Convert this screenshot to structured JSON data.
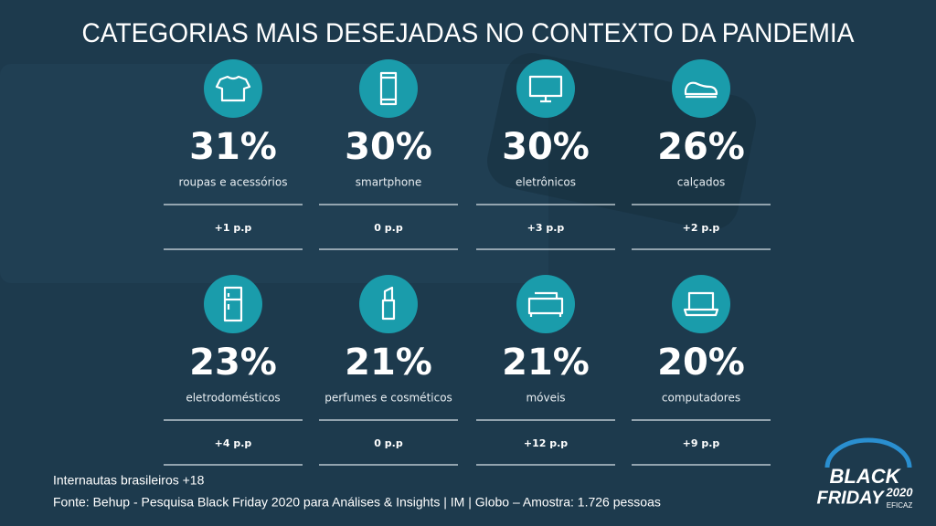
{
  "title": "CATEGORIAS MAIS DESEJADAS NO CONTEXTO DA PANDEMIA",
  "cards": [
    {
      "percent": "31%",
      "label": "roupas e acessórios",
      "change": "+1 p.p"
    },
    {
      "percent": "30%",
      "label": "smartphone",
      "change": "0 p.p"
    },
    {
      "percent": "30%",
      "label": "eletrônicos",
      "change": "+3 p.p"
    },
    {
      "percent": "26%",
      "label": "calçados",
      "change": "+2 p.p"
    },
    {
      "percent": "23%",
      "label": "eletrodomésticos",
      "change": "+4 p.p"
    },
    {
      "percent": "21%",
      "label": "perfumes e cosméticos",
      "change": "0 p.p"
    },
    {
      "percent": "21%",
      "label": "móveis",
      "change": "+12 p.p"
    },
    {
      "percent": "20%",
      "label": "computadores",
      "change": "+9 p.p"
    }
  ],
  "footer": {
    "line1": "Internautas brasileiros +18",
    "line2": "Fonte: Behup - Pesquisa Black Friday 2020 para Análises & Insights | IM | Globo – Amostra: 1.726 pessoas"
  },
  "logo": {
    "word1": "BLACK",
    "word2": "FRIDAY",
    "year": "2020",
    "brand": "EFICAZ"
  }
}
